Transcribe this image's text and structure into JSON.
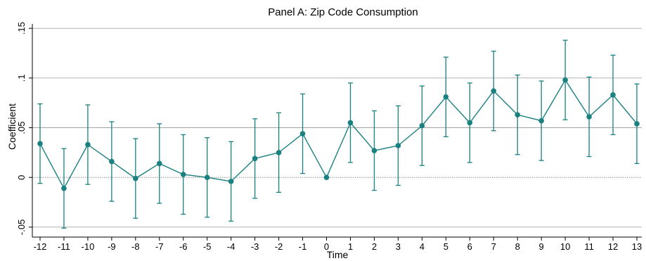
{
  "chart_data": {
    "type": "line",
    "title": "Panel A: Zip Code Consumption",
    "xlabel": "Time",
    "ylabel": "Coefficient",
    "x": [
      -12,
      -11,
      -10,
      -9,
      -8,
      -7,
      -6,
      -5,
      -4,
      -3,
      -2,
      -1,
      0,
      1,
      2,
      3,
      4,
      5,
      6,
      7,
      8,
      9,
      10,
      11,
      12,
      13
    ],
    "x_tick_labels": [
      "-12",
      "-11",
      "-10",
      "-9",
      "-8",
      "-7",
      "-6",
      "-5",
      "-4",
      "-3",
      "-2",
      "-1",
      "0",
      "1",
      "2",
      "3",
      "4",
      "5",
      "6",
      "7",
      "8",
      "9",
      "10",
      "11",
      "12",
      "13"
    ],
    "y_ticks": [
      -0.05,
      0,
      0.05,
      0.1,
      0.15
    ],
    "y_tick_labels": [
      "-.05",
      "0",
      ".05",
      ".1",
      ".15"
    ],
    "ylim": [
      -0.05,
      0.15
    ],
    "xlim": [
      -12,
      13
    ],
    "grid": true,
    "zero_line": true,
    "series": [
      {
        "values": [
          0.034,
          -0.011,
          0.033,
          0.016,
          -0.001,
          0.014,
          0.003,
          0.0,
          -0.004,
          0.019,
          0.025,
          0.044,
          0.0,
          0.055,
          0.027,
          0.032,
          0.052,
          0.081,
          0.055,
          0.087,
          0.063,
          0.057,
          0.098,
          0.061,
          0.083,
          0.054
        ],
        "ci_low": [
          -0.006,
          -0.051,
          -0.007,
          -0.024,
          -0.041,
          -0.026,
          -0.037,
          -0.04,
          -0.044,
          -0.021,
          -0.015,
          0.004,
          0.0,
          0.015,
          -0.013,
          -0.008,
          0.012,
          0.041,
          0.015,
          0.047,
          0.023,
          0.017,
          0.058,
          0.021,
          0.043,
          0.014
        ],
        "ci_high": [
          0.074,
          0.029,
          0.073,
          0.056,
          0.039,
          0.054,
          0.043,
          0.04,
          0.036,
          0.059,
          0.065,
          0.084,
          0.0,
          0.095,
          0.067,
          0.072,
          0.092,
          0.121,
          0.095,
          0.127,
          0.103,
          0.097,
          0.138,
          0.101,
          0.123,
          0.094
        ]
      }
    ],
    "colors": {
      "series": "#1a8080",
      "grid": "#9a9a9a",
      "zero_line": "#7a7a7a",
      "axis": "#000000"
    }
  }
}
